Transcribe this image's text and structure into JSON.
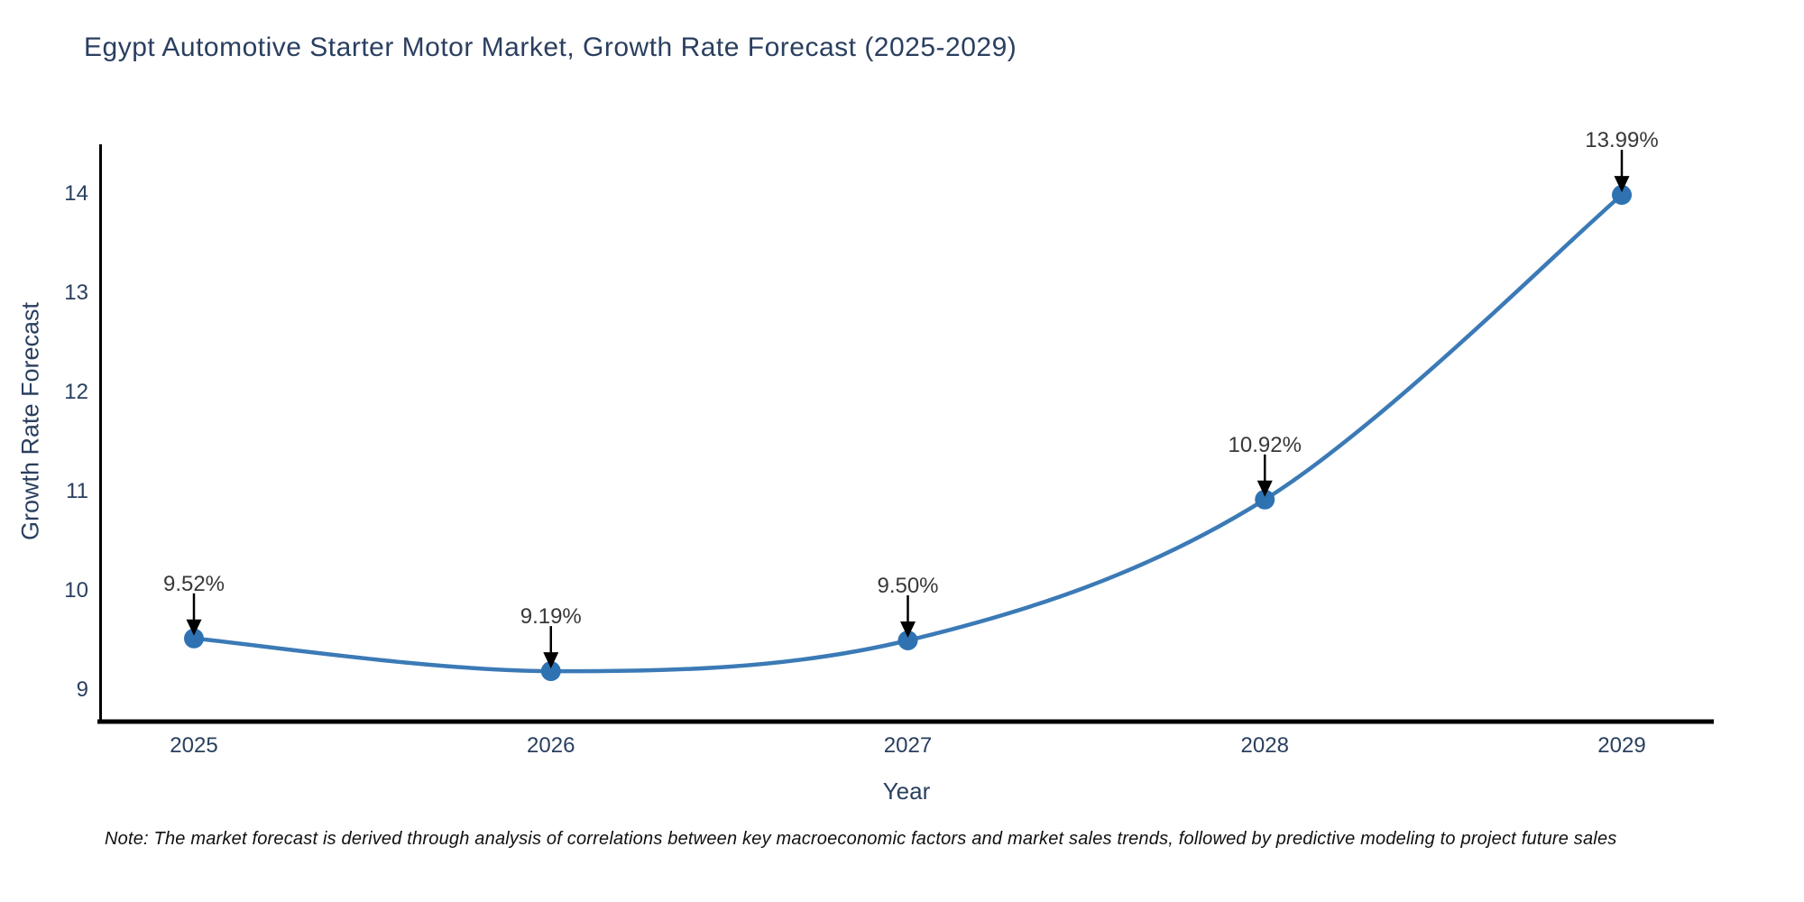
{
  "title": "Egypt Automotive Starter Motor Market, Growth Rate Forecast (2025-2029)",
  "note": "Note: The market forecast is derived through analysis of correlations between key macroeconomic factors and market sales trends, followed by predictive modeling to project future sales",
  "chart_data": {
    "type": "line",
    "title": "Egypt Automotive Starter Motor Market, Growth Rate Forecast (2025-2029)",
    "xlabel": "Year",
    "ylabel": "Growth Rate Forecast",
    "x": [
      2025,
      2026,
      2027,
      2028,
      2029
    ],
    "values": [
      9.52,
      9.19,
      9.5,
      10.92,
      13.99
    ],
    "point_labels": [
      "9.52%",
      "9.19%",
      "9.50%",
      "10.92%",
      "13.99%"
    ],
    "yticks": [
      9,
      10,
      11,
      12,
      13,
      14
    ],
    "xticks": [
      "2025",
      "2026",
      "2027",
      "2028",
      "2029"
    ],
    "ylim": [
      8.68,
      14.5
    ],
    "xlim": [
      2024.73,
      2029.27
    ],
    "grid": false,
    "legend": "none",
    "smooth_line": true,
    "line_color": "#3b7ab6",
    "marker_color": "#2e72b2",
    "arrow_color": "#000000",
    "axis_color": "#000000"
  },
  "colors": {
    "background": "#ffffff",
    "title_text": "#2a3f5f",
    "tick_text": "#2a3f5f",
    "annotation_text": "#383838"
  }
}
